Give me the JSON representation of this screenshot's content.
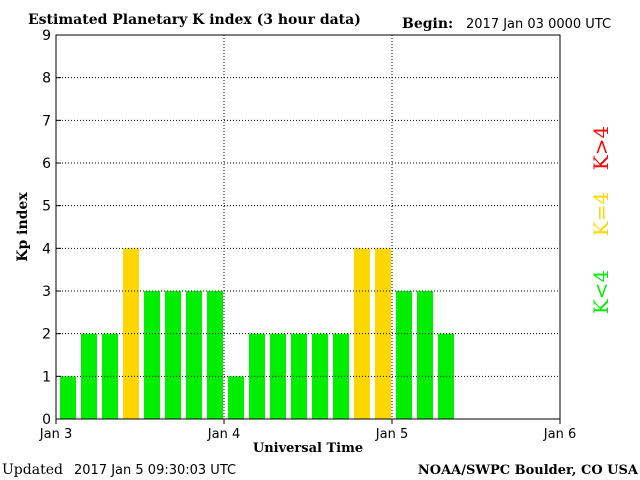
{
  "header": {
    "title": "Estimated Planetary K index (3 hour data)",
    "begin_label": "Begin:",
    "begin_value": "2017 Jan 03 0000 UTC"
  },
  "footer": {
    "updated_label": "Updated",
    "updated_value": "2017 Jan  5 09:30:03 UTC",
    "source": "NOAA/SWPC Boulder, CO USA"
  },
  "legend": {
    "high": {
      "label": "K>4",
      "color": "#ff0000"
    },
    "equal": {
      "label": "K=4",
      "color": "#ffd700"
    },
    "low": {
      "label": "K<4",
      "color": "#00ee00"
    }
  },
  "chart_data": {
    "type": "bar",
    "title": "Estimated Planetary K index (3 hour data)",
    "xlabel": "Universal Time",
    "ylabel": "Kp index",
    "ylim": [
      0,
      9
    ],
    "yticks": [
      "0",
      "1",
      "2",
      "3",
      "4",
      "5",
      "6",
      "7",
      "8",
      "9"
    ],
    "xticks": [
      "Jan 3",
      "Jan 4",
      "Jan 5",
      "Jan 6"
    ],
    "grid": true,
    "legend_position": "right",
    "interval_hours": 3,
    "values": [
      1,
      2,
      2,
      4,
      3,
      3,
      3,
      3,
      1,
      2,
      2,
      2,
      2,
      2,
      4,
      4,
      3,
      3,
      2
    ],
    "colors": {
      "below4": "#00ee00",
      "equal4": "#ffd700",
      "above4": "#ff0000"
    }
  }
}
